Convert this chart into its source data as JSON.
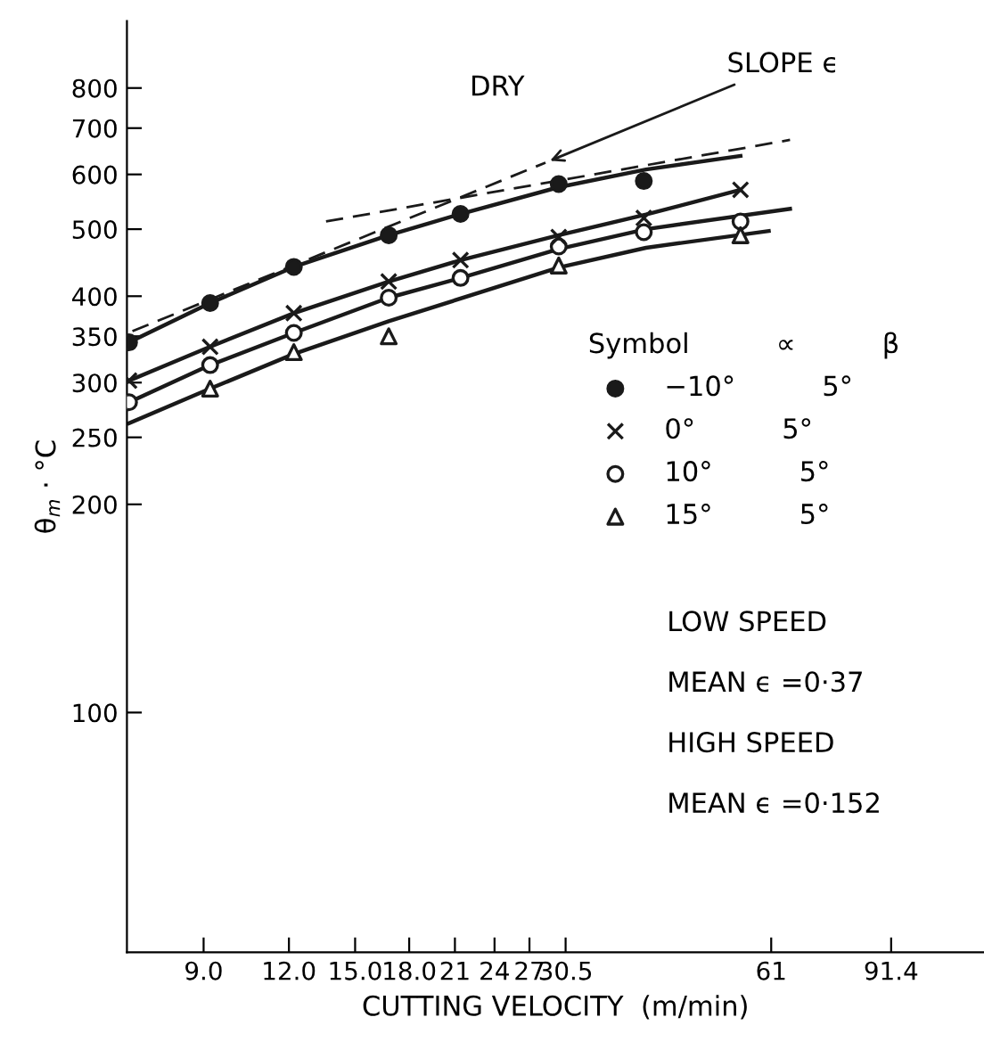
{
  "chart_data": {
    "type": "scatter",
    "xlabel": "CUTTING VELOCITY  (m/min)",
    "ylabel": "θ$_{m}$ · °C",
    "log": "xy",
    "xlim": [
      6.95,
      125
    ],
    "ylim": [
      45,
      1000
    ],
    "xticks": [
      {
        "value": 9,
        "label": "9.0"
      },
      {
        "value": 12,
        "label": "12.0"
      },
      {
        "value": 15,
        "label": "15.0"
      },
      {
        "value": 18,
        "label": "18.0"
      },
      21,
      24,
      27,
      30.5,
      61,
      91.4
    ],
    "yticks": [
      100,
      200,
      250,
      300,
      350,
      400,
      500,
      600,
      700,
      800
    ],
    "grid": false,
    "legend": "right",
    "legend_title": "Symbol          ∝          β",
    "series": [
      {
        "name": "−10°          5°",
        "color": "#1a1a1a",
        "marker": "circle",
        "x": [
          7,
          9.2,
          12.2,
          16.8,
          21.4,
          29.8,
          39.7
        ],
        "values": [
          343,
          391,
          441,
          490,
          526,
          581,
          587
        ]
      },
      {
        "name": "0°          5°",
        "color": "#1a1a1a",
        "marker": "cross",
        "x": [
          7,
          9.2,
          12.2,
          16.8,
          21.4,
          29.8,
          39.7,
          55
        ],
        "values": [
          302,
          338,
          378,
          420,
          451,
          487,
          519,
          570
        ]
      },
      {
        "name": "10°          5°",
        "color": "#ffffff",
        "marker": "circle",
        "x": [
          7,
          9.2,
          12.2,
          16.8,
          21.4,
          29.8,
          39.7,
          55
        ],
        "values": [
          281,
          318,
          354,
          398,
          425,
          472,
          495,
          513
        ]
      },
      {
        "name": "15°          5°",
        "color": "#ffffff",
        "marker": "triangle",
        "x": [
          9.2,
          12.2,
          16.8,
          29.8,
          55
        ],
        "values": [
          294,
          332,
          350,
          443,
          490
        ]
      },
      {
        "type": "line",
        "color": "#1a1a1a",
        "marker": "none",
        "line_style": "solid",
        "x": [
          7,
          9.2,
          12.2,
          16.8,
          21.4,
          29.8,
          40,
          55
        ],
        "values": [
          343,
          391,
          441,
          490,
          526,
          575,
          610,
          638
        ]
      },
      {
        "type": "line",
        "color": "#1a1a1a",
        "marker": "none",
        "line_style": "solid",
        "x": [
          7,
          9.2,
          12.2,
          16.8,
          21.4,
          29.8,
          40,
          55
        ],
        "values": [
          302,
          338,
          378,
          420,
          451,
          490,
          525,
          570
        ]
      },
      {
        "type": "line",
        "color": "#1a1a1a",
        "marker": "none",
        "line_style": "solid",
        "x": [
          7,
          9.2,
          12.2,
          16.8,
          21.4,
          29.8,
          40,
          65
        ],
        "values": [
          281,
          318,
          354,
          398,
          425,
          468,
          500,
          535
        ]
      },
      {
        "type": "line",
        "color": "#1a1a1a",
        "marker": "none",
        "line_style": "solid",
        "x": [
          7,
          9.2,
          12.2,
          16.8,
          29.8,
          40,
          60.5
        ],
        "values": [
          262,
          294,
          330,
          368,
          440,
          470,
          497
        ]
      },
      {
        "type": "line",
        "color": "#1a1a1a",
        "marker": "none",
        "line_style": "dashed",
        "x": [
          7.08,
          28.5
        ],
        "values": [
          356,
          624
        ]
      },
      {
        "type": "line",
        "color": "#1a1a1a",
        "marker": "none",
        "line_style": "dashed",
        "x": [
          13.6,
          65
        ],
        "values": [
          513,
          673
        ]
      }
    ],
    "annotations": [
      "DRY",
      {
        "text": "SLOPE ϵ",
        "x": 28.5,
        "y": 624
      },
      "LOW SPEED",
      "MEAN ϵ =0·37",
      "HIGH SPEED",
      "MEAN ϵ =0·152"
    ]
  }
}
